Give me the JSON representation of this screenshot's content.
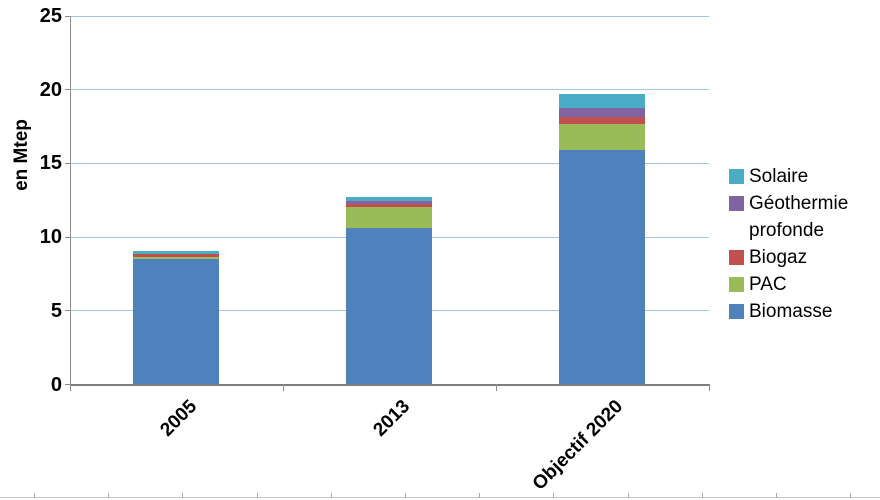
{
  "chart_data": {
    "type": "bar",
    "stacked": true,
    "title": "",
    "xlabel": "",
    "ylabel": "en Mtep",
    "ylim": [
      0,
      25
    ],
    "y_ticks": [
      0,
      5,
      10,
      15,
      20,
      25
    ],
    "grid": "horizontal",
    "legend_position": "right",
    "categories": [
      "2005",
      "2013",
      "Objectif 2020"
    ],
    "series": [
      {
        "name": "Biomasse",
        "color": "#4F81BD",
        "values": [
          8.5,
          10.6,
          15.9
        ]
      },
      {
        "name": "PAC",
        "color": "#9BBB59",
        "values": [
          0.17,
          1.47,
          1.78
        ]
      },
      {
        "name": "Biogaz",
        "color": "#C0504D",
        "values": [
          0.2,
          0.15,
          0.48
        ]
      },
      {
        "name": "Géothermie profonde",
        "color": "#8064A2",
        "values": [
          0.0,
          0.22,
          0.61
        ]
      },
      {
        "name": "Solaire",
        "color": "#4BACC6",
        "values": [
          0.2,
          0.27,
          0.95
        ]
      }
    ],
    "totals": [
      9.07,
      12.71,
      19.72
    ],
    "legend_order": [
      "Solaire",
      "Géothermie profonde",
      "Biogaz",
      "PAC",
      "Biomasse"
    ],
    "colors": {
      "gridline": "#a3c6e8",
      "axis": "#7f7f7f",
      "text": "#000000"
    }
  }
}
